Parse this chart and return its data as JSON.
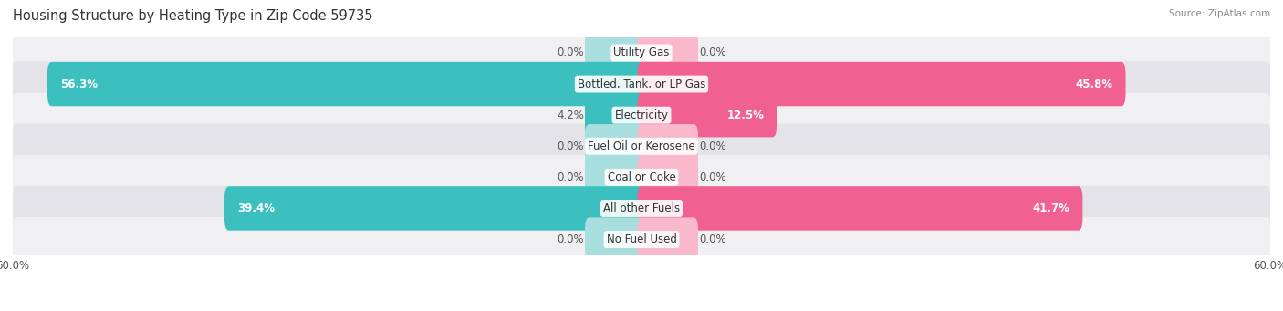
{
  "title": "Housing Structure by Heating Type in Zip Code 59735",
  "source": "Source: ZipAtlas.com",
  "categories": [
    "Utility Gas",
    "Bottled, Tank, or LP Gas",
    "Electricity",
    "Fuel Oil or Kerosene",
    "Coal or Coke",
    "All other Fuels",
    "No Fuel Used"
  ],
  "owner_values": [
    0.0,
    56.3,
    4.2,
    0.0,
    0.0,
    39.4,
    0.0
  ],
  "renter_values": [
    0.0,
    45.8,
    12.5,
    0.0,
    0.0,
    41.7,
    0.0
  ],
  "owner_color": "#3BBFBF",
  "renter_color": "#F06090",
  "owner_color_light": "#A8DEDE",
  "renter_color_light": "#F9B8CC",
  "row_bg_light": "#F0F0F2",
  "row_bg_dark": "#E4E4E8",
  "axis_limit": 60.0,
  "min_bar_width": 5.0,
  "label_fontsize": 8.5,
  "title_fontsize": 10.5,
  "legend_fontsize": 9,
  "source_fontsize": 7.5
}
